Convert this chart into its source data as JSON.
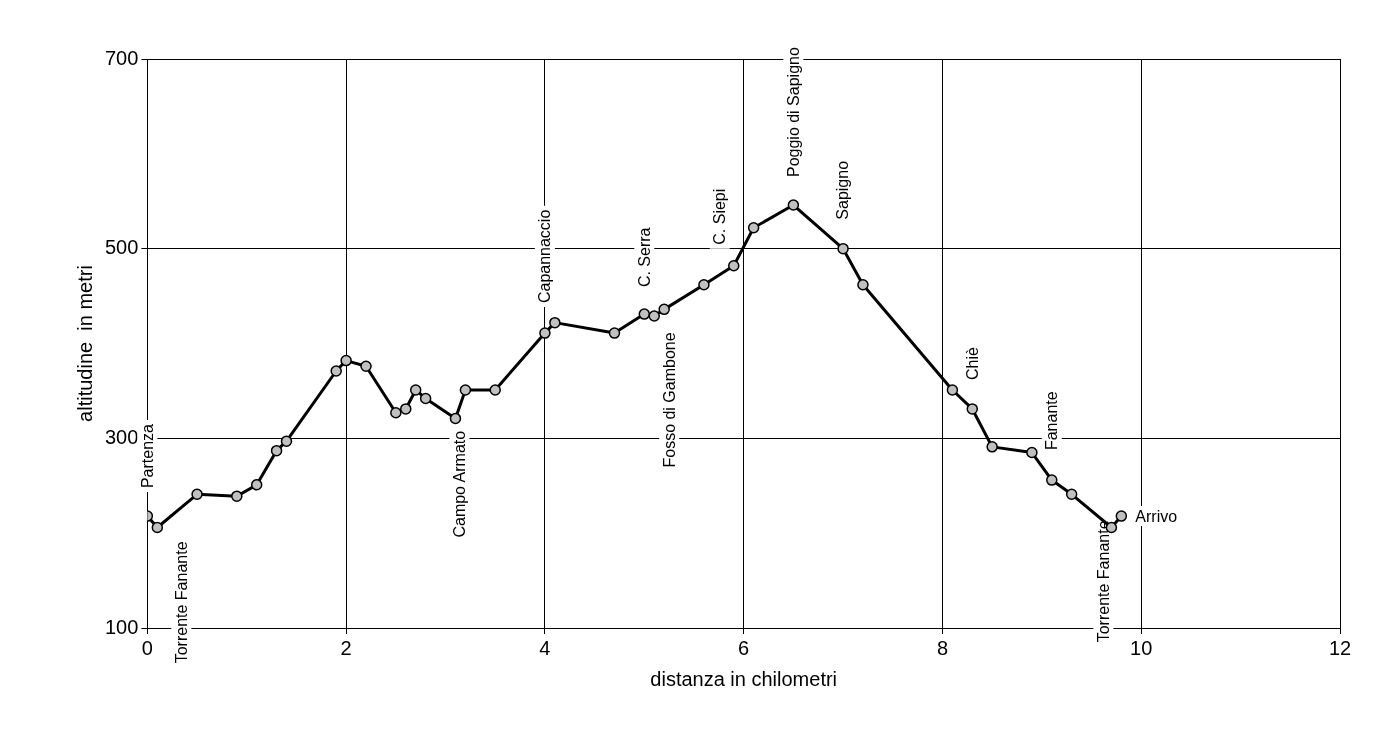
{
  "chart_data": {
    "type": "line",
    "xlabel": "distanza in chilometri",
    "ylabel": "altitudine  in metri",
    "x": [
      0,
      0.1,
      0.5,
      0.9,
      1.1,
      1.3,
      1.4,
      1.9,
      2,
      2.2,
      2.5,
      2.6,
      2.7,
      2.8,
      3.1,
      3.2,
      3.5,
      4,
      4.1,
      4.7,
      5,
      5.1,
      5.2,
      5.6,
      5.9,
      6.1,
      6.5,
      7,
      7.2,
      8.1,
      8.3,
      8.5,
      8.9,
      9.1,
      9.3,
      9.7,
      9.8
    ],
    "series": [
      {
        "color": "#000000",
        "values": [
          218,
          206,
          241,
          239,
          251,
          287,
          297,
          371,
          382,
          376,
          327,
          331,
          351,
          342,
          321,
          351,
          351,
          411,
          422,
          411,
          431,
          429,
          436,
          462,
          482,
          522,
          546,
          500,
          462,
          351,
          331,
          291,
          285,
          256,
          241,
          206,
          218
        ]
      }
    ],
    "xlim": [
      0,
      12
    ],
    "xticks": [
      0,
      2,
      4,
      6,
      8,
      10,
      12
    ],
    "ylim": [
      100,
      700
    ],
    "yticks": [
      100,
      300,
      500,
      700
    ],
    "grid": true,
    "legend": false,
    "marker": "circle",
    "line_style": "solid",
    "annotations": [
      {
        "text": "Partenza",
        "x": 0,
        "y": 218
      },
      {
        "text": "Torrente Fanante",
        "x": 0.1,
        "y": 206
      },
      {
        "text": "Campo Armato",
        "x": 3.1,
        "y": 321
      },
      {
        "text": "Capannaccio",
        "x": 4,
        "y": 411
      },
      {
        "text": "C. Serra",
        "x": 5,
        "y": 431
      },
      {
        "text": "Fosso di Gambone",
        "x": 5.2,
        "y": 436
      },
      {
        "text": "C. Siepi",
        "x": 5.9,
        "y": 482
      },
      {
        "text": "Poggio di Sapigno",
        "x": 6.5,
        "y": 546
      },
      {
        "text": "Sapigno",
        "x": 7,
        "y": 500
      },
      {
        "text": "Chiè",
        "x": 8.3,
        "y": 331
      },
      {
        "text": "Fanante",
        "x": 9.1,
        "y": 256
      },
      {
        "text": "Torrente Fanante",
        "x": 9.7,
        "y": 206
      },
      {
        "text": "Arrivo",
        "x": 9.8,
        "y": 218
      }
    ]
  }
}
